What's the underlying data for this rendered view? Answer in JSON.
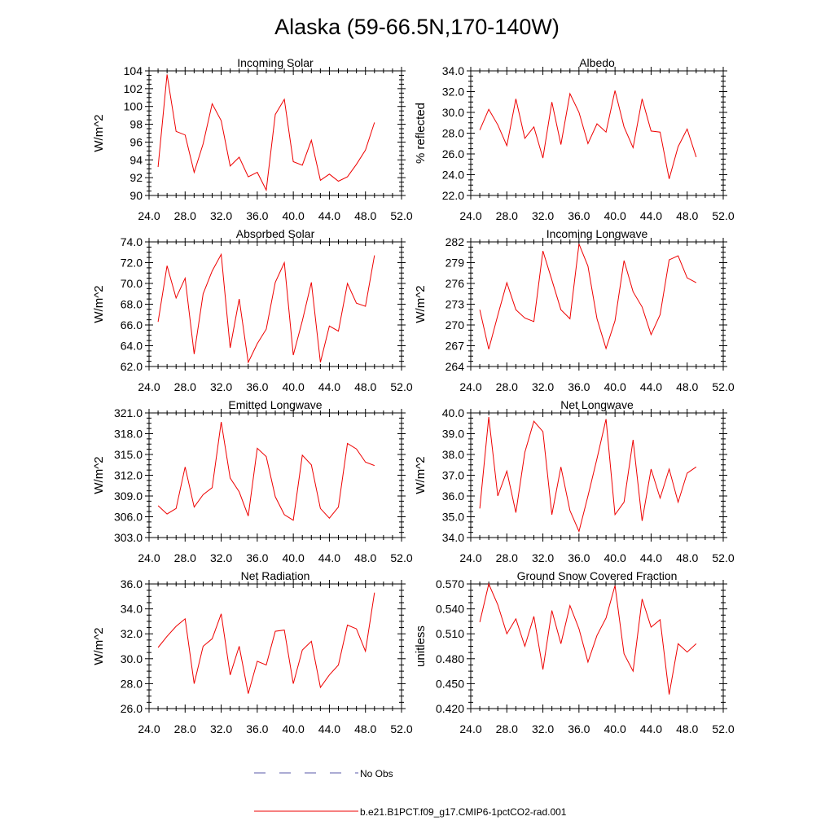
{
  "figure_title": "Alaska (59-66.5N,170-140W)",
  "legend": {
    "items": [
      {
        "label": "No Obs",
        "color": "#5a5aa8",
        "style": "dashed"
      },
      {
        "label": "b.e21.B1PCT.f09_g17.CMIP6-1pctCO2-rad.001",
        "color": "#ee0000",
        "style": "solid"
      }
    ]
  },
  "colors": {
    "series": "#ee0000",
    "axis": "#000000"
  },
  "chart_data": [
    {
      "type": "line",
      "title": "Incoming Solar",
      "ylabel": "W/m^2",
      "xlim": [
        24,
        52
      ],
      "ylim": [
        90,
        104
      ],
      "xticks": [
        24,
        28,
        32,
        36,
        40,
        44,
        48,
        52
      ],
      "xtick_labels": [
        "24.0",
        "28.0",
        "32.0",
        "36.0",
        "40.0",
        "44.0",
        "48.0",
        "52.0"
      ],
      "yticks": [
        90,
        92,
        94,
        96,
        98,
        100,
        102,
        104
      ],
      "ytick_labels": [
        "90",
        "92",
        "94",
        "96",
        "98",
        "100",
        "102",
        "104"
      ],
      "x": [
        25,
        26,
        27,
        28,
        29,
        30,
        31,
        32,
        33,
        34,
        35,
        36,
        37,
        38,
        39,
        40,
        41,
        42,
        43,
        44,
        45,
        46,
        47,
        48,
        49
      ],
      "series": [
        {
          "name": "b.e21.B1PCT.f09_g17.CMIP6-1pctCO2-rad.001",
          "values": [
            93.2,
            103.6,
            97.2,
            96.8,
            92.6,
            95.8,
            100.3,
            98.4,
            93.3,
            94.3,
            92.1,
            92.6,
            90.6,
            99.1,
            100.8,
            93.8,
            93.4,
            96.2,
            91.7,
            92.4,
            91.6,
            92.1,
            93.5,
            95.1,
            98.2
          ]
        }
      ]
    },
    {
      "type": "line",
      "title": "Albedo",
      "ylabel": "% reflected",
      "xlim": [
        24,
        52
      ],
      "ylim": [
        22,
        34
      ],
      "xticks": [
        24,
        28,
        32,
        36,
        40,
        44,
        48,
        52
      ],
      "xtick_labels": [
        "24.0",
        "28.0",
        "32.0",
        "36.0",
        "40.0",
        "44.0",
        "48.0",
        "52.0"
      ],
      "yticks": [
        22,
        24,
        26,
        28,
        30,
        32,
        34
      ],
      "ytick_labels": [
        "22.0",
        "24.0",
        "26.0",
        "28.0",
        "30.0",
        "32.0",
        "34.0"
      ],
      "x": [
        25,
        26,
        27,
        28,
        29,
        30,
        31,
        32,
        33,
        34,
        35,
        36,
        37,
        38,
        39,
        40,
        41,
        42,
        43,
        44,
        45,
        46,
        47,
        48,
        49
      ],
      "series": [
        {
          "name": "b.e21.B1PCT.f09_g17.CMIP6-1pctCO2-rad.001",
          "values": [
            28.3,
            30.3,
            28.8,
            26.8,
            31.3,
            27.5,
            28.6,
            25.6,
            31.0,
            26.9,
            31.8,
            30.0,
            27.0,
            28.9,
            28.1,
            32.1,
            28.6,
            26.6,
            31.3,
            28.2,
            28.1,
            23.6,
            26.7,
            28.4,
            25.7
          ]
        }
      ]
    },
    {
      "type": "line",
      "title": "Absorbed Solar",
      "ylabel": "W/m^2",
      "xlim": [
        24,
        52
      ],
      "ylim": [
        62,
        74
      ],
      "xticks": [
        24,
        28,
        32,
        36,
        40,
        44,
        48,
        52
      ],
      "xtick_labels": [
        "24.0",
        "28.0",
        "32.0",
        "36.0",
        "40.0",
        "44.0",
        "48.0",
        "52.0"
      ],
      "yticks": [
        62,
        64,
        66,
        68,
        70,
        72,
        74
      ],
      "ytick_labels": [
        "62.0",
        "64.0",
        "66.0",
        "68.0",
        "70.0",
        "72.0",
        "74.0"
      ],
      "x": [
        25,
        26,
        27,
        28,
        29,
        30,
        31,
        32,
        33,
        34,
        35,
        36,
        37,
        38,
        39,
        40,
        41,
        42,
        43,
        44,
        45,
        46,
        47,
        48,
        49
      ],
      "series": [
        {
          "name": "b.e21.B1PCT.f09_g17.CMIP6-1pctCO2-rad.001",
          "values": [
            66.3,
            71.7,
            68.6,
            70.5,
            63.2,
            69.0,
            71.2,
            72.8,
            63.8,
            68.5,
            62.4,
            64.2,
            65.6,
            70.1,
            72.0,
            63.1,
            66.4,
            70.1,
            62.4,
            65.9,
            65.4,
            70.0,
            68.1,
            67.8,
            72.7
          ]
        }
      ]
    },
    {
      "type": "line",
      "title": "Incoming Longwave",
      "ylabel": "W/m^2",
      "xlim": [
        24,
        52
      ],
      "ylim": [
        264,
        282
      ],
      "xticks": [
        24,
        28,
        32,
        36,
        40,
        44,
        48,
        52
      ],
      "xtick_labels": [
        "24.0",
        "28.0",
        "32.0",
        "36.0",
        "40.0",
        "44.0",
        "48.0",
        "52.0"
      ],
      "yticks": [
        264,
        267,
        270,
        273,
        276,
        279,
        282
      ],
      "ytick_labels": [
        "264",
        "267",
        "270",
        "273",
        "276",
        "279",
        "282"
      ],
      "x": [
        25,
        26,
        27,
        28,
        29,
        30,
        31,
        32,
        33,
        34,
        35,
        36,
        37,
        38,
        39,
        40,
        41,
        42,
        43,
        44,
        45,
        46,
        47,
        48,
        49
      ],
      "series": [
        {
          "name": "b.e21.B1PCT.f09_g17.CMIP6-1pctCO2-rad.001",
          "values": [
            272.2,
            266.5,
            271.4,
            276.1,
            272.2,
            271.0,
            270.5,
            280.7,
            276.5,
            272.2,
            270.9,
            281.7,
            278.5,
            270.9,
            266.6,
            270.6,
            279.3,
            274.8,
            272.6,
            268.6,
            271.5,
            279.4,
            280.0,
            276.8,
            276.1
          ]
        }
      ]
    },
    {
      "type": "line",
      "title": "Emitted Longwave",
      "ylabel": "W/m^2",
      "xlim": [
        24,
        52
      ],
      "ylim": [
        303,
        321
      ],
      "xticks": [
        24,
        28,
        32,
        36,
        40,
        44,
        48,
        52
      ],
      "xtick_labels": [
        "24.0",
        "28.0",
        "32.0",
        "36.0",
        "40.0",
        "44.0",
        "48.0",
        "52.0"
      ],
      "yticks": [
        303,
        306,
        309,
        312,
        315,
        318,
        321
      ],
      "ytick_labels": [
        "303.0",
        "306.0",
        "309.0",
        "312.0",
        "315.0",
        "318.0",
        "321.0"
      ],
      "x": [
        25,
        26,
        27,
        28,
        29,
        30,
        31,
        32,
        33,
        34,
        35,
        36,
        37,
        38,
        39,
        40,
        41,
        42,
        43,
        44,
        45,
        46,
        47,
        48,
        49
      ],
      "series": [
        {
          "name": "b.e21.B1PCT.f09_g17.CMIP6-1pctCO2-rad.001",
          "values": [
            307.6,
            306.4,
            307.2,
            313.2,
            307.4,
            309.2,
            310.2,
            319.7,
            311.6,
            309.6,
            306.1,
            315.9,
            314.7,
            308.9,
            306.3,
            305.5,
            314.9,
            313.5,
            307.2,
            305.8,
            307.4,
            316.6,
            315.8,
            313.9,
            313.4
          ]
        }
      ]
    },
    {
      "type": "line",
      "title": "Net Longwave",
      "ylabel": "W/m^2",
      "xlim": [
        24,
        52
      ],
      "ylim": [
        34,
        40
      ],
      "xticks": [
        24,
        28,
        32,
        36,
        40,
        44,
        48,
        52
      ],
      "xtick_labels": [
        "24.0",
        "28.0",
        "32.0",
        "36.0",
        "40.0",
        "44.0",
        "48.0",
        "52.0"
      ],
      "yticks": [
        34,
        35,
        36,
        37,
        38,
        39,
        40
      ],
      "ytick_labels": [
        "34.0",
        "35.0",
        "36.0",
        "37.0",
        "38.0",
        "39.0",
        "40.0"
      ],
      "x": [
        25,
        26,
        27,
        28,
        29,
        30,
        31,
        32,
        33,
        34,
        35,
        36,
        37,
        38,
        39,
        40,
        41,
        42,
        43,
        44,
        45,
        46,
        47,
        48,
        49
      ],
      "series": [
        {
          "name": "b.e21.B1PCT.f09_g17.CMIP6-1pctCO2-rad.001",
          "values": [
            35.4,
            39.8,
            36.0,
            37.2,
            35.2,
            38.1,
            39.6,
            39.1,
            35.1,
            37.4,
            35.3,
            34.3,
            36.0,
            37.8,
            39.7,
            35.1,
            35.7,
            38.7,
            34.8,
            37.3,
            35.9,
            37.3,
            35.7,
            37.1,
            37.4
          ]
        }
      ]
    },
    {
      "type": "line",
      "title": "Net Radiation",
      "ylabel": "W/m^2",
      "xlim": [
        24,
        52
      ],
      "ylim": [
        26,
        36
      ],
      "xticks": [
        24,
        28,
        32,
        36,
        40,
        44,
        48,
        52
      ],
      "xtick_labels": [
        "24.0",
        "28.0",
        "32.0",
        "36.0",
        "40.0",
        "44.0",
        "48.0",
        "52.0"
      ],
      "yticks": [
        26,
        28,
        30,
        32,
        34,
        36
      ],
      "ytick_labels": [
        "26.0",
        "28.0",
        "30.0",
        "32.0",
        "34.0",
        "36.0"
      ],
      "x": [
        25,
        26,
        27,
        28,
        29,
        30,
        31,
        32,
        33,
        34,
        35,
        36,
        37,
        38,
        39,
        40,
        41,
        42,
        43,
        44,
        45,
        46,
        47,
        48,
        49
      ],
      "series": [
        {
          "name": "b.e21.B1PCT.f09_g17.CMIP6-1pctCO2-rad.001",
          "values": [
            30.9,
            31.8,
            32.6,
            33.2,
            28.0,
            31.0,
            31.6,
            33.6,
            28.7,
            31.0,
            27.2,
            29.8,
            29.5,
            32.2,
            32.3,
            28.0,
            30.7,
            31.4,
            27.7,
            28.7,
            29.5,
            32.7,
            32.4,
            30.6,
            35.3
          ]
        }
      ]
    },
    {
      "type": "line",
      "title": "Ground Snow Covered Fraction",
      "ylabel": "unitless",
      "xlim": [
        24,
        52
      ],
      "ylim": [
        0.42,
        0.57
      ],
      "xticks": [
        24,
        28,
        32,
        36,
        40,
        44,
        48,
        52
      ],
      "xtick_labels": [
        "24.0",
        "28.0",
        "32.0",
        "36.0",
        "40.0",
        "44.0",
        "48.0",
        "52.0"
      ],
      "yticks": [
        0.42,
        0.45,
        0.48,
        0.51,
        0.54,
        0.57
      ],
      "ytick_labels": [
        "0.420",
        "0.450",
        "0.480",
        "0.510",
        "0.540",
        "0.570"
      ],
      "x": [
        25,
        26,
        27,
        28,
        29,
        30,
        31,
        32,
        33,
        34,
        35,
        36,
        37,
        38,
        39,
        40,
        41,
        42,
        43,
        44,
        45,
        46,
        47,
        48,
        49
      ],
      "series": [
        {
          "name": "b.e21.B1PCT.f09_g17.CMIP6-1pctCO2-rad.001",
          "values": [
            0.524,
            0.57,
            0.545,
            0.51,
            0.528,
            0.495,
            0.531,
            0.467,
            0.538,
            0.498,
            0.544,
            0.516,
            0.476,
            0.508,
            0.529,
            0.568,
            0.486,
            0.465,
            0.552,
            0.518,
            0.527,
            0.437,
            0.498,
            0.488,
            0.498
          ]
        }
      ]
    }
  ]
}
